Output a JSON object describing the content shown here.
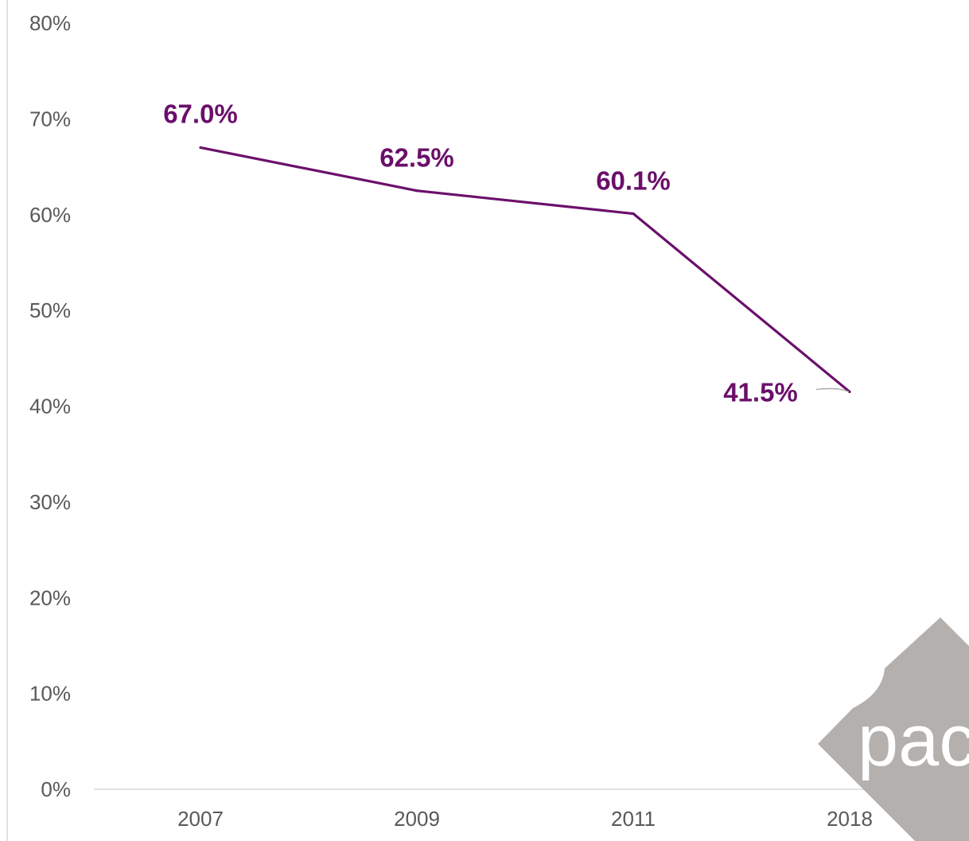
{
  "chart_data": {
    "type": "line",
    "categories": [
      "2007",
      "2009",
      "2011",
      "2018"
    ],
    "series": [
      {
        "values": [
          67.0,
          62.5,
          60.1,
          41.5
        ]
      }
    ],
    "data_labels": [
      "67.0%",
      "62.5%",
      "60.1%",
      "41.5%"
    ],
    "y_ticks": [
      "0%",
      "10%",
      "20%",
      "30%",
      "40%",
      "50%",
      "60%",
      "70%",
      "80%"
    ],
    "ylim": [
      0,
      80
    ],
    "grid": false,
    "title": "",
    "xlabel": "",
    "ylabel": ""
  },
  "colors": {
    "series": "#6b0f6b",
    "axis": "#d9d9d9",
    "tick_text": "#595959",
    "logo": "#b3b0ad"
  },
  "logo": {
    "text": "pact",
    "icon": "pact-logo"
  }
}
